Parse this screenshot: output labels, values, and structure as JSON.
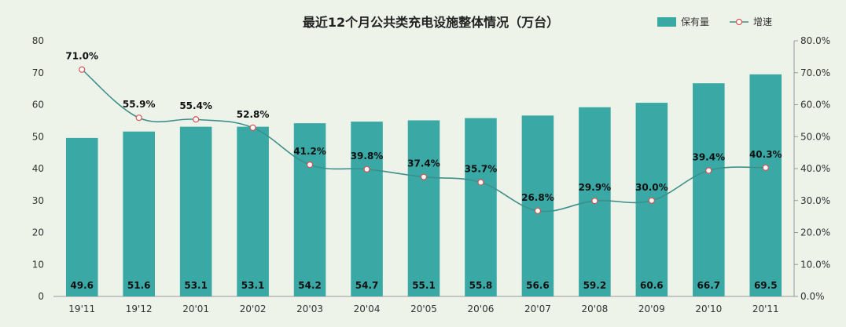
{
  "chart_data": {
    "type": "bar",
    "title": "最近12个月公共类充电设施整体情况（万台）",
    "categories": [
      "19'11",
      "19'12",
      "20'01",
      "20'02",
      "20'03",
      "20'04",
      "20'05",
      "20'06",
      "20'07",
      "20'08",
      "20'09",
      "20'10",
      "20'11"
    ],
    "series": [
      {
        "name": "保有量",
        "type": "bar",
        "axis": "left",
        "values": [
          49.6,
          51.6,
          53.1,
          53.1,
          54.2,
          54.7,
          55.1,
          55.8,
          56.6,
          59.2,
          60.6,
          66.7,
          69.5
        ],
        "labels": [
          "49.6",
          "51.6",
          "53.1",
          "53.1",
          "54.2",
          "54.7",
          "55.1",
          "55.8",
          "56.6",
          "59.2",
          "60.6",
          "66.7",
          "69.5"
        ]
      },
      {
        "name": "增速",
        "type": "line",
        "axis": "right",
        "values": [
          71.0,
          55.9,
          55.4,
          52.8,
          41.2,
          39.8,
          37.4,
          35.7,
          26.8,
          29.9,
          30.0,
          39.4,
          40.3
        ],
        "labels": [
          "71.0%",
          "55.9%",
          "55.4%",
          "52.8%",
          "41.2%",
          "39.8%",
          "37.4%",
          "35.7%",
          "26.8%",
          "29.9%",
          "30.0%",
          "39.4%",
          "40.3%"
        ]
      }
    ],
    "y_left": {
      "ylim": [
        0,
        80
      ],
      "ticks": [
        "0",
        "10",
        "20",
        "30",
        "40",
        "50",
        "60",
        "70",
        "80"
      ]
    },
    "y_right": {
      "ylim": [
        0,
        80
      ],
      "ticks": [
        "0.0%",
        "10.0%",
        "20.0%",
        "30.0%",
        "40.0%",
        "50.0%",
        "60.0%",
        "70.0%",
        "80.0%"
      ]
    },
    "grid": false,
    "legend_position": "top-right",
    "colors": {
      "bar": "#3aa9a6",
      "line": "#3d8f8b",
      "marker_stroke": "#d9534f",
      "marker_fill": "#ffffff",
      "background": "#eef3ea"
    }
  }
}
